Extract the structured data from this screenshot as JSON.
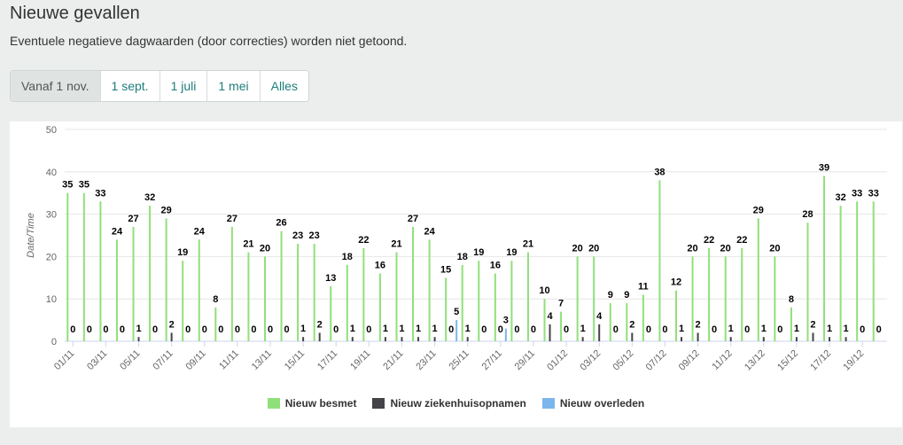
{
  "header": {
    "title": "Nieuwe gevallen",
    "subtitle": "Eventuele negatieve dagwaarden (door correcties) worden niet getoond."
  },
  "range_buttons": [
    {
      "label": "Vanaf 1 nov.",
      "active": true
    },
    {
      "label": "1 sept.",
      "active": false
    },
    {
      "label": "1 juli",
      "active": false
    },
    {
      "label": "1 mei",
      "active": false
    },
    {
      "label": "Alles",
      "active": false
    }
  ],
  "chart_data": {
    "type": "bar",
    "ylabel": "Date/Time",
    "xlabel": "",
    "ylim": [
      0,
      50
    ],
    "yticks": [
      0,
      10,
      20,
      30,
      40,
      50
    ],
    "grid": true,
    "legend_position": "bottom",
    "categories": [
      "01/11",
      "02/11",
      "03/11",
      "04/11",
      "05/11",
      "06/11",
      "07/11",
      "08/11",
      "09/11",
      "10/11",
      "11/11",
      "12/11",
      "13/11",
      "14/11",
      "15/11",
      "16/11",
      "17/11",
      "18/11",
      "19/11",
      "20/11",
      "21/11",
      "22/11",
      "23/11",
      "24/11",
      "25/11",
      "26/11",
      "27/11",
      "28/11",
      "29/11",
      "30/11",
      "01/12",
      "02/12",
      "03/12",
      "04/12",
      "05/12",
      "06/12",
      "07/12",
      "08/12",
      "09/12",
      "10/12",
      "11/12",
      "12/12",
      "13/12",
      "14/12",
      "15/12",
      "16/12",
      "17/12",
      "18/12",
      "19/12",
      "20/12"
    ],
    "tick_labels": [
      "01/11",
      "03/11",
      "05/11",
      "07/11",
      "09/11",
      "11/11",
      "13/11",
      "15/11",
      "17/11",
      "19/11",
      "21/11",
      "23/11",
      "25/11",
      "27/11",
      "29/11",
      "01/12",
      "03/12",
      "05/12",
      "07/12",
      "09/12",
      "11/12",
      "13/12",
      "15/12",
      "17/12",
      "19/12"
    ],
    "series": [
      {
        "name": "Nieuw besmet",
        "color": "#90e07a",
        "values": [
          35,
          35,
          33,
          24,
          27,
          32,
          29,
          19,
          24,
          8,
          27,
          21,
          20,
          26,
          23,
          23,
          13,
          18,
          22,
          16,
          21,
          27,
          24,
          15,
          18,
          19,
          16,
          19,
          21,
          10,
          7,
          20,
          20,
          9,
          9,
          11,
          38,
          12,
          20,
          22,
          20,
          22,
          29,
          20,
          8,
          28,
          39,
          32,
          33,
          33
        ]
      },
      {
        "name": "Nieuw ziekenhuisopnamen",
        "color": "#434348",
        "values": [
          0,
          0,
          0,
          0,
          1,
          0,
          2,
          0,
          0,
          0,
          0,
          0,
          0,
          0,
          1,
          2,
          0,
          1,
          0,
          1,
          1,
          1,
          1,
          0,
          1,
          0,
          0,
          0,
          0,
          4,
          0,
          1,
          4,
          0,
          2,
          0,
          0,
          1,
          2,
          0,
          1,
          0,
          1,
          0,
          1,
          2,
          1,
          1,
          0,
          0
        ]
      },
      {
        "name": "Nieuw overleden",
        "color": "#7cb5ec",
        "values": [
          0,
          0,
          0,
          0,
          0,
          0,
          0,
          0,
          0,
          0,
          0,
          0,
          0,
          0,
          0,
          0,
          0,
          0,
          0,
          0,
          0,
          0,
          0,
          5,
          0,
          0,
          3,
          0,
          0,
          0,
          0,
          0,
          0,
          0,
          0,
          0,
          0,
          0,
          0,
          0,
          0,
          0,
          0,
          0,
          0,
          0,
          0,
          0,
          0,
          0
        ]
      }
    ]
  }
}
